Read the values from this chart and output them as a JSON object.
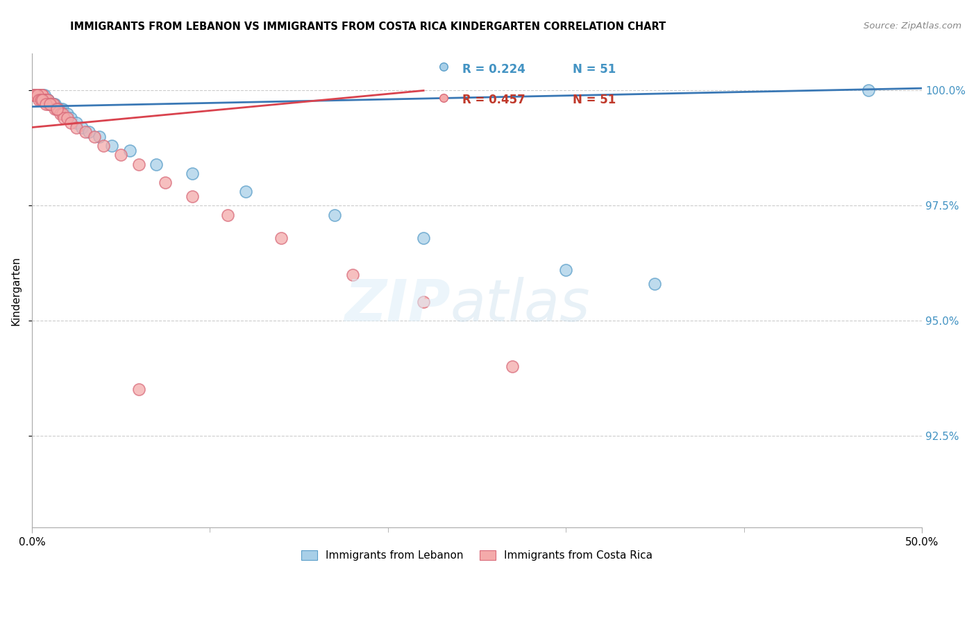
{
  "title": "IMMIGRANTS FROM LEBANON VS IMMIGRANTS FROM COSTA RICA KINDERGARTEN CORRELATION CHART",
  "source": "Source: ZipAtlas.com",
  "ylabel": "Kindergarten",
  "ytick_labels": [
    "100.0%",
    "97.5%",
    "95.0%",
    "92.5%"
  ],
  "ytick_values": [
    1.0,
    0.975,
    0.95,
    0.925
  ],
  "xlim": [
    0.0,
    0.5
  ],
  "ylim": [
    0.905,
    1.008
  ],
  "legend_blue_r": "R = 0.224",
  "legend_blue_n": "N = 51",
  "legend_pink_r": "R = 0.457",
  "legend_pink_n": "N = 51",
  "blue_color": "#a8cfe8",
  "pink_color": "#f4aaaa",
  "blue_edge_color": "#5a9ec9",
  "pink_edge_color": "#d96b7a",
  "blue_line_color": "#3a78b5",
  "pink_line_color": "#d9434e",
  "grid_color": "#cccccc",
  "axis_color": "#aaaaaa",
  "right_tick_color": "#4393c3",
  "blue_scatter_x": [
    0.001,
    0.002,
    0.002,
    0.003,
    0.003,
    0.003,
    0.004,
    0.004,
    0.005,
    0.005,
    0.006,
    0.006,
    0.006,
    0.007,
    0.007,
    0.008,
    0.008,
    0.009,
    0.009,
    0.01,
    0.01,
    0.011,
    0.012,
    0.013,
    0.014,
    0.015,
    0.016,
    0.017,
    0.018,
    0.02,
    0.022,
    0.025,
    0.028,
    0.032,
    0.038,
    0.045,
    0.055,
    0.07,
    0.09,
    0.12,
    0.17,
    0.22,
    0.3,
    0.35,
    0.47,
    0.001,
    0.002,
    0.004,
    0.006,
    0.008,
    0.012
  ],
  "blue_scatter_y": [
    0.999,
    0.999,
    0.999,
    0.999,
    0.999,
    0.999,
    0.999,
    0.999,
    0.999,
    0.999,
    0.999,
    0.999,
    0.998,
    0.999,
    0.998,
    0.998,
    0.998,
    0.998,
    0.998,
    0.997,
    0.997,
    0.997,
    0.997,
    0.997,
    0.996,
    0.996,
    0.996,
    0.996,
    0.995,
    0.995,
    0.994,
    0.993,
    0.992,
    0.991,
    0.99,
    0.988,
    0.987,
    0.984,
    0.982,
    0.978,
    0.973,
    0.968,
    0.961,
    0.958,
    1.0,
    0.999,
    0.999,
    0.999,
    0.998,
    0.998,
    0.997
  ],
  "pink_scatter_x": [
    0.001,
    0.002,
    0.002,
    0.003,
    0.003,
    0.004,
    0.004,
    0.005,
    0.005,
    0.006,
    0.006,
    0.007,
    0.007,
    0.008,
    0.008,
    0.009,
    0.009,
    0.01,
    0.011,
    0.012,
    0.013,
    0.014,
    0.015,
    0.016,
    0.017,
    0.018,
    0.02,
    0.022,
    0.025,
    0.03,
    0.035,
    0.04,
    0.05,
    0.06,
    0.075,
    0.09,
    0.11,
    0.14,
    0.18,
    0.22,
    0.27,
    0.001,
    0.002,
    0.003,
    0.004,
    0.005,
    0.006,
    0.008,
    0.01,
    0.014,
    0.06
  ],
  "pink_scatter_y": [
    0.999,
    0.999,
    0.999,
    0.999,
    0.999,
    0.999,
    0.999,
    0.999,
    0.999,
    0.999,
    0.999,
    0.998,
    0.998,
    0.998,
    0.998,
    0.998,
    0.997,
    0.997,
    0.997,
    0.997,
    0.996,
    0.996,
    0.996,
    0.995,
    0.995,
    0.994,
    0.994,
    0.993,
    0.992,
    0.991,
    0.99,
    0.988,
    0.986,
    0.984,
    0.98,
    0.977,
    0.973,
    0.968,
    0.96,
    0.954,
    0.94,
    0.999,
    0.999,
    0.999,
    0.998,
    0.998,
    0.998,
    0.997,
    0.997,
    0.996,
    0.935
  ],
  "blue_trendline_x": [
    0.0,
    0.5
  ],
  "blue_trendline_y": [
    0.9965,
    1.0005
  ],
  "pink_trendline_x": [
    0.0,
    0.22
  ],
  "pink_trendline_y": [
    0.992,
    1.0
  ]
}
